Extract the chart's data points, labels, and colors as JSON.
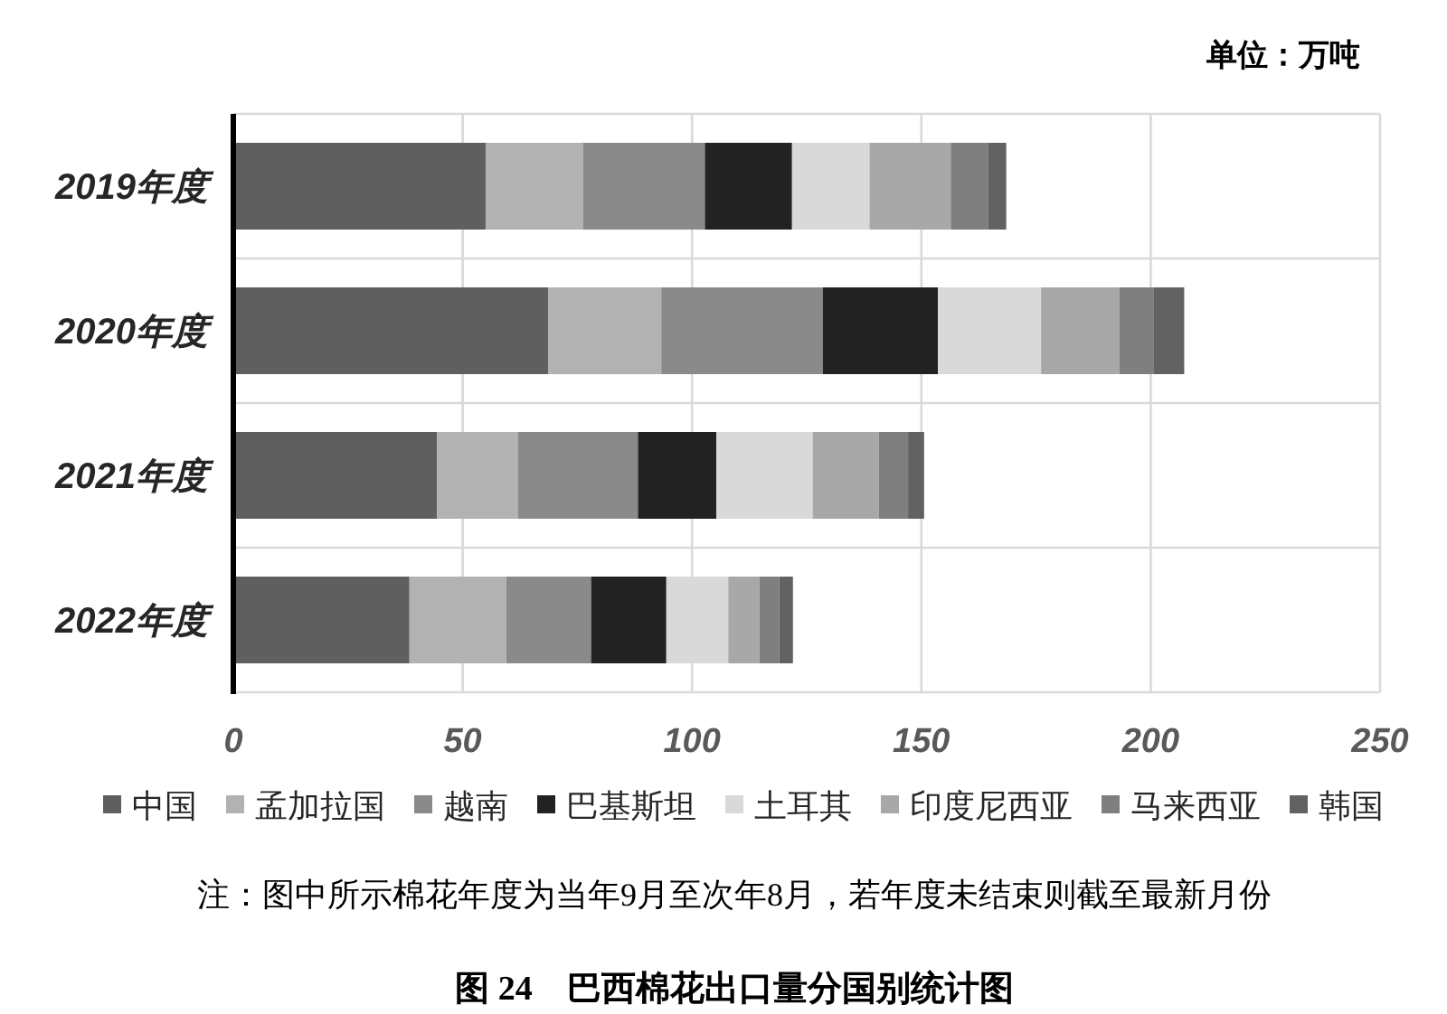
{
  "chart_data": {
    "type": "bar",
    "orientation": "horizontal",
    "stacked": true,
    "title": "图 24　巴西棉花出口量分国别统计图",
    "annotations": [
      "单位：万吨",
      "注：图中所示棉花年度为当年9月至次年8月，若年度未结束则截至最新月份"
    ],
    "categories": [
      "2019年度",
      "2020年度",
      "2021年度",
      "2022年度"
    ],
    "series": [
      {
        "name": "中国",
        "color": "#5f5f5f",
        "values": [
          55.0,
          68.7,
          44.4,
          38.4
        ]
      },
      {
        "name": "孟加拉国",
        "color": "#b2b2b2",
        "values": [
          21.3,
          24.6,
          17.6,
          21.1
        ]
      },
      {
        "name": "越南",
        "color": "#8a8a8a",
        "values": [
          26.5,
          35.2,
          26.2,
          18.5
        ]
      },
      {
        "name": "巴基斯坦",
        "color": "#222222",
        "values": [
          19.0,
          25.1,
          17.1,
          16.4
        ]
      },
      {
        "name": "土耳其",
        "color": "#d9d9d9",
        "values": [
          16.9,
          22.5,
          21.0,
          13.5
        ]
      },
      {
        "name": "印度尼西亚",
        "color": "#a8a8a8",
        "values": [
          17.7,
          17.1,
          14.4,
          6.8
        ]
      },
      {
        "name": "马来西亚",
        "color": "#7f7f7f",
        "values": [
          8.2,
          7.5,
          6.4,
          4.3
        ]
      },
      {
        "name": "韩国",
        "color": "#626262",
        "values": [
          3.9,
          6.6,
          3.5,
          3.0
        ]
      }
    ],
    "xlim": [
      0,
      250
    ],
    "xticks": [
      0,
      50,
      100,
      150,
      200,
      250
    ],
    "grid": true,
    "legend": "bottom"
  }
}
